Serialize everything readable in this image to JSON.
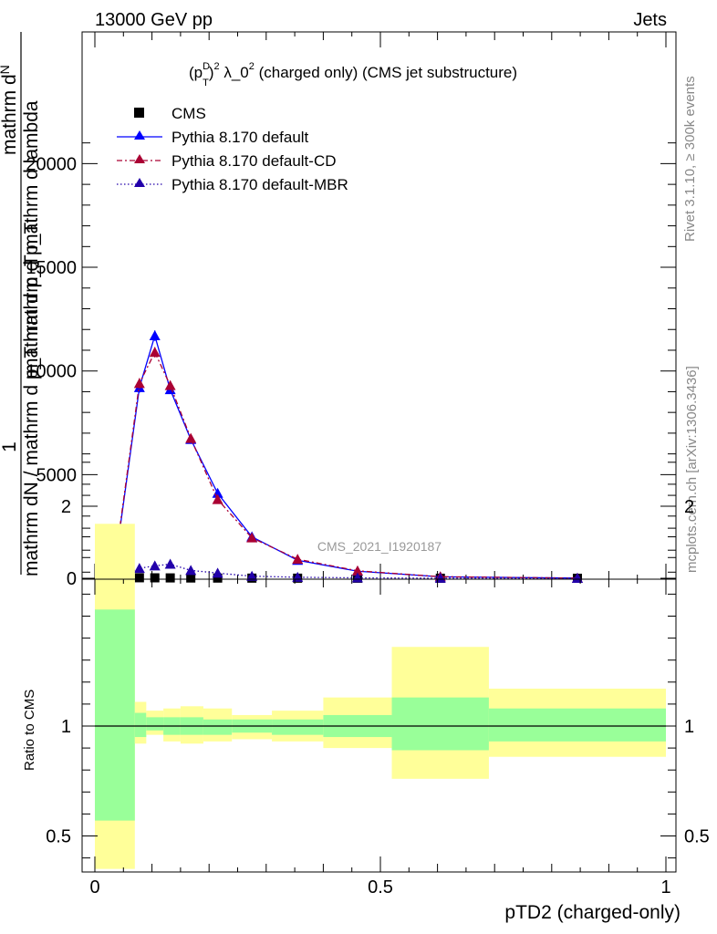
{
  "header": {
    "left": "13000 GeV pp",
    "right": "Jets"
  },
  "side_text": {
    "rivet": "Rivet 3.1.10, ≥ 300k events",
    "mcplots": "mcplots.cern.ch [arXiv:1306.3436]"
  },
  "watermark": "CMS_2021_I1920187",
  "colors": {
    "cms": "#000000",
    "default": "#0000ff",
    "cd": "#aa0033",
    "mbr": "#2200aa",
    "band_inner": "#99ff99",
    "band_outer": "#ffff99"
  },
  "chart_data": [
    {
      "type": "line",
      "title": "(p_T^D)^2 λ_0^2 (charged only) (CMS jet substructure)",
      "title_parts": {
        "a": "(p",
        "sup1": "D",
        "sub1": "T",
        "b": ")",
        "sup2": "2",
        "c": " λ_0",
        "sup3": "2",
        "d": " (charged only) (CMS jet substructure)"
      },
      "ylabel": "1 / mathrm dN / mathrm d p_T mathrm d p_T mathrm dN / mathrm d lambda",
      "ylabel_parts": {
        "one": "1",
        "den": "mathrm dN / mathrm d p_T mathrm d p_T",
        "num": "mathrm d",
        "num2": "N",
        "den2": "mathrm d p_T mathrm d lambda"
      },
      "xlim": [
        0,
        1
      ],
      "ylim": [
        0,
        22000
      ],
      "yticks": [
        0,
        5000,
        10000,
        15000,
        20000
      ],
      "ytick_labels": [
        "0",
        "5000",
        "10000",
        "15000",
        "20000"
      ],
      "legend_position": "top-left",
      "series": [
        {
          "name": "CMS",
          "marker": "square",
          "x": [
            0.038,
            0.078,
            0.105,
            0.132,
            0.168,
            0.215,
            0.275,
            0.355,
            0.46,
            0.605,
            0.845
          ],
          "y": [
            20,
            25,
            22,
            18,
            14,
            10,
            7,
            5,
            3,
            2,
            1
          ]
        },
        {
          "name": "Pythia 8.170 default",
          "marker": "triangle",
          "style": "solid",
          "x": [
            0.038,
            0.078,
            0.105,
            0.132,
            0.168,
            0.215,
            0.275,
            0.355,
            0.46,
            0.605,
            0.845
          ],
          "y": [
            1200,
            9200,
            11700,
            9100,
            6700,
            4100,
            2000,
            870,
            340,
            70,
            8
          ],
          "err": [
            150,
            250,
            250,
            200,
            150,
            120,
            80,
            50,
            30,
            15,
            3
          ]
        },
        {
          "name": "Pythia 8.170 default-CD",
          "marker": "triangle",
          "style": "dashdot",
          "x": [
            0.038,
            0.078,
            0.105,
            0.132,
            0.168,
            0.215,
            0.275,
            0.355,
            0.46,
            0.605,
            0.845
          ],
          "y": [
            1300,
            9400,
            10900,
            9300,
            6750,
            3800,
            1950,
            920,
            360,
            75,
            8
          ],
          "err": [
            150,
            250,
            250,
            200,
            150,
            120,
            80,
            50,
            30,
            15,
            3
          ]
        },
        {
          "name": "Pythia 8.170 default-MBR",
          "marker": "triangle",
          "style": "dotted",
          "x": [
            0.038,
            0.078,
            0.105,
            0.132,
            0.168,
            0.215,
            0.275,
            0.355,
            0.46,
            0.605,
            0.845
          ],
          "y": [
            50,
            480,
            600,
            680,
            380,
            250,
            100,
            50,
            20,
            5,
            2
          ],
          "err": [
            20,
            50,
            50,
            50,
            40,
            30,
            20,
            10,
            5,
            3,
            1
          ]
        }
      ]
    },
    {
      "type": "area",
      "ylabel": "Ratio to CMS",
      "xlabel": "pTD2 (charged-only)",
      "xlim": [
        0,
        1
      ],
      "ylim": [
        0.35,
        2.3
      ],
      "yticks": [
        0.5,
        1,
        2
      ],
      "ytick_labels": [
        "0.5",
        "1",
        "2"
      ],
      "xticks": [
        0,
        0.5,
        1
      ],
      "xtick_labels": [
        "0",
        "0.5",
        "1"
      ],
      "reference_line": 1,
      "bins": [
        {
          "lo": 0.0,
          "hi": 0.07,
          "inner": [
            0.57,
            1.53
          ],
          "outer": [
            0.0,
            1.92
          ]
        },
        {
          "lo": 0.07,
          "hi": 0.09,
          "inner": [
            0.95,
            1.06
          ],
          "outer": [
            0.92,
            1.11
          ]
        },
        {
          "lo": 0.09,
          "hi": 0.12,
          "inner": [
            0.98,
            1.04
          ],
          "outer": [
            0.96,
            1.07
          ]
        },
        {
          "lo": 0.12,
          "hi": 0.15,
          "inner": [
            0.96,
            1.04
          ],
          "outer": [
            0.93,
            1.08
          ]
        },
        {
          "lo": 0.15,
          "hi": 0.19,
          "inner": [
            0.96,
            1.04
          ],
          "outer": [
            0.92,
            1.09
          ]
        },
        {
          "lo": 0.19,
          "hi": 0.24,
          "inner": [
            0.96,
            1.03
          ],
          "outer": [
            0.93,
            1.08
          ]
        },
        {
          "lo": 0.24,
          "hi": 0.31,
          "inner": [
            0.97,
            1.03
          ],
          "outer": [
            0.94,
            1.05
          ]
        },
        {
          "lo": 0.31,
          "hi": 0.4,
          "inner": [
            0.96,
            1.03
          ],
          "outer": [
            0.93,
            1.07
          ]
        },
        {
          "lo": 0.4,
          "hi": 0.52,
          "inner": [
            0.95,
            1.05
          ],
          "outer": [
            0.9,
            1.13
          ]
        },
        {
          "lo": 0.52,
          "hi": 0.69,
          "inner": [
            0.89,
            1.13
          ],
          "outer": [
            0.76,
            1.36
          ]
        },
        {
          "lo": 0.69,
          "hi": 1.0,
          "inner": [
            0.93,
            1.08
          ],
          "outer": [
            0.86,
            1.17
          ]
        }
      ]
    }
  ]
}
